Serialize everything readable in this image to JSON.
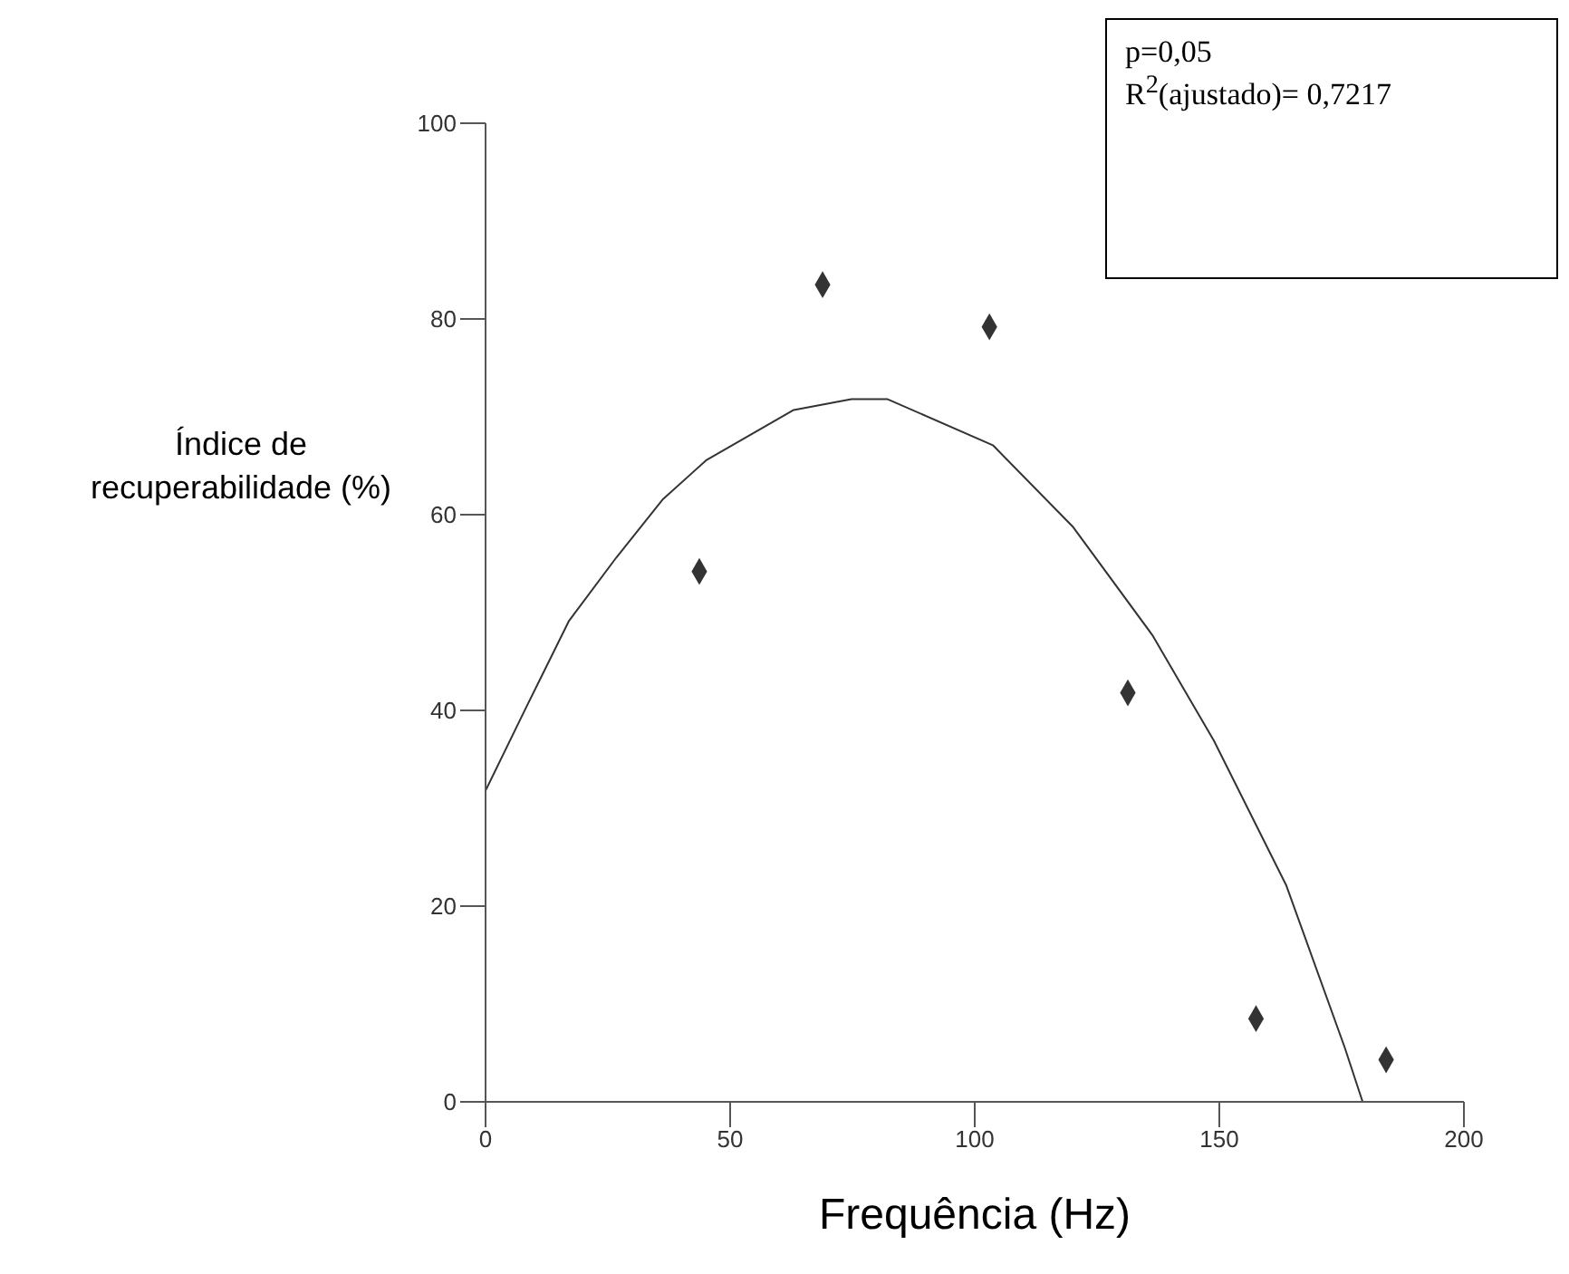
{
  "chart_data": {
    "type": "scatter",
    "xlabel": "Frequência (Hz)",
    "ylabel": "Índice de recuperabilidade (%)",
    "annotations": [
      "p=0,05",
      "R$^{2}$(ajustado)= 0,7217"
    ],
    "xlim": [
      0,
      200
    ],
    "ylim": [
      0,
      100
    ],
    "xticks": [
      0,
      50,
      100,
      150,
      200
    ],
    "yticks": [
      0,
      20,
      40,
      60,
      80,
      100
    ],
    "grid": false,
    "legend": false,
    "series": [
      {
        "color": "#333333",
        "marker": "diamond",
        "x": [
          43.7,
          68.9,
          103,
          131.3,
          157.5,
          184.1
        ],
        "values": [
          54.2,
          83.5,
          79.2,
          41.8,
          8.5,
          4.3
        ]
      },
      {
        "type": "line",
        "color": "#333333",
        "marker": "none",
        "line_style": "solid",
        "x": [
          0,
          8.1,
          17,
          26.7,
          36.3,
          45.2,
          63,
          74.8,
          82.2,
          103.7,
          120,
          136.3,
          148.9,
          163.7,
          175.6,
          179.3
        ],
        "values": [
          31.8,
          40.1,
          49.1,
          55.6,
          61.6,
          65.6,
          70.7,
          71.8,
          71.8,
          67.1,
          58.8,
          47.7,
          36.9,
          22.1,
          5.6,
          0
        ]
      }
    ]
  }
}
